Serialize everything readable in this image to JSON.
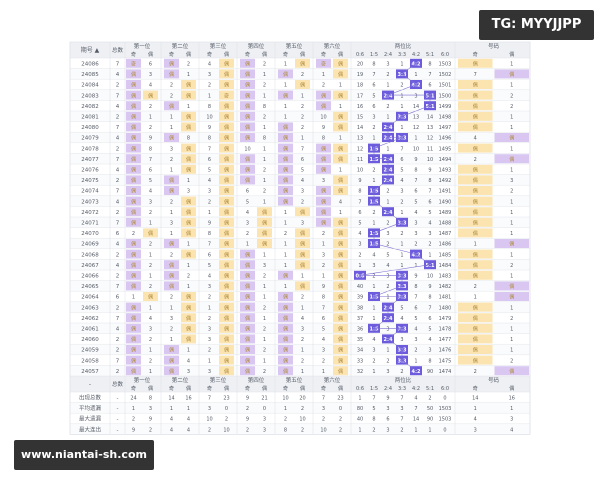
{
  "watermark": {
    "tg": "TG: MYYJJPP",
    "site": "www.niantai-sh.com"
  },
  "colors": {
    "purple": "#d9c7f2",
    "yellow": "#fbe4b0",
    "highlight": "#6c5bdc",
    "header": "#eef0f4",
    "border": "#dde0e6",
    "text": "#555b66"
  },
  "table": {
    "header": {
      "issue_label": "期号 ▲",
      "sum_label": "总数",
      "groups": [
        "第一位",
        "第二位",
        "第三位",
        "第四位",
        "第五位",
        "第六位",
        "两位比",
        "号码"
      ],
      "subs": {
        "pos": [
          "奇",
          "偶"
        ],
        "ratio": [
          "0:6",
          "1:5",
          "2:4",
          "3:3",
          "4:2",
          "5:1",
          "6:0"
        ],
        "tail": [
          "奇",
          "偶"
        ]
      }
    },
    "rows": [
      {
        "issue": "24086",
        "sum": "7",
        "cells": [
          "奇",
          "6",
          "偶",
          "2",
          "4",
          "偶",
          "偶",
          "2",
          "1",
          "偶",
          "奇",
          "偶",
          "20",
          "8",
          "3",
          "1",
          "4:2",
          "8",
          "1503",
          "偶",
          "1"
        ]
      },
      {
        "issue": "24085",
        "sum": "4",
        "cells": [
          "偶",
          "3",
          "偶",
          "1",
          "3",
          "偶",
          "偶",
          "1",
          "偶",
          "2",
          "1",
          "偶",
          "19",
          "7",
          "2",
          "3:3",
          "1",
          "7",
          "1502",
          "7",
          "偶"
        ]
      },
      {
        "issue": "24084",
        "sum": "2",
        "cells": [
          "偶",
          "4",
          "2",
          "偶",
          "2",
          "偶",
          "偶",
          "2",
          "1",
          "偶",
          "2",
          "1",
          "18",
          "6",
          "1",
          "2",
          "4:2",
          "6",
          "1501",
          "偶",
          "1"
        ]
      },
      {
        "issue": "24083",
        "sum": "7",
        "cells": [
          "偶",
          "偶",
          "2",
          "偶",
          "1",
          "奇",
          "偶",
          "1",
          "偶",
          "1",
          "偶",
          "偶",
          "17",
          "5",
          "2:4",
          "1",
          "3",
          "5:1",
          "1500",
          "偶",
          "2"
        ]
      },
      {
        "issue": "24082",
        "sum": "4",
        "cells": [
          "偶",
          "2",
          "偶",
          "1",
          "8",
          "偶",
          "偶",
          "8",
          "1",
          "2",
          "偶",
          "1",
          "16",
          "6",
          "2",
          "1",
          "14",
          "5:1",
          "1499",
          "偶",
          "2"
        ]
      },
      {
        "issue": "24081",
        "sum": "2",
        "cells": [
          "偶",
          "1",
          "1",
          "偶",
          "10",
          "偶",
          "偶",
          "2",
          "1",
          "2",
          "10",
          "偶",
          "15",
          "3",
          "1",
          "3:3",
          "13",
          "14",
          "1498",
          "偶",
          "1"
        ]
      },
      {
        "issue": "24080",
        "sum": "7",
        "cells": [
          "偶",
          "2",
          "1",
          "偶",
          "9",
          "偶",
          "偶",
          "1",
          "偶",
          "2",
          "9",
          "偶",
          "14",
          "2",
          "2:4",
          "1",
          "12",
          "13",
          "1497",
          "偶",
          "1"
        ]
      },
      {
        "issue": "24079",
        "sum": "4",
        "cells": [
          "偶",
          "9",
          "偶",
          "8",
          "8",
          "偶",
          "偶",
          "8",
          "偶",
          "1",
          "8",
          "1",
          "13",
          "1",
          "2:4",
          "3:3",
          "1",
          "12",
          "1496",
          "4",
          "偶"
        ]
      },
      {
        "issue": "24078",
        "sum": "2",
        "cells": [
          "偶",
          "8",
          "3",
          "偶",
          "7",
          "偶",
          "10",
          "1",
          "偶",
          "7",
          "偶",
          "偶",
          "12",
          "1:5",
          "1",
          "7",
          "10",
          "11",
          "1495",
          "偶",
          "1"
        ]
      },
      {
        "issue": "24077",
        "sum": "7",
        "cells": [
          "偶",
          "7",
          "2",
          "偶",
          "6",
          "偶",
          "偶",
          "1",
          "偶",
          "6",
          "偶",
          "偶",
          "11",
          "1:5",
          "2:4",
          "6",
          "9",
          "10",
          "1494",
          "2",
          "偶"
        ]
      },
      {
        "issue": "24076",
        "sum": "4",
        "cells": [
          "偶",
          "6",
          "1",
          "偶",
          "5",
          "偶",
          "偶",
          "2",
          "偶",
          "5",
          "偶",
          "1",
          "10",
          "2",
          "2:4",
          "5",
          "8",
          "9",
          "1493",
          "偶",
          "1"
        ]
      },
      {
        "issue": "24075",
        "sum": "2",
        "cells": [
          "偶",
          "5",
          "偶",
          "1",
          "4",
          "偶",
          "偶",
          "1",
          "偶",
          "4",
          "3",
          "偶",
          "9",
          "1",
          "2:4",
          "4",
          "7",
          "8",
          "1492",
          "偶",
          "3"
        ]
      },
      {
        "issue": "24074",
        "sum": "7",
        "cells": [
          "偶",
          "4",
          "偶",
          "3",
          "3",
          "偶",
          "6",
          "2",
          "偶",
          "3",
          "偶",
          "偶",
          "8",
          "1:5",
          "2",
          "3",
          "6",
          "7",
          "1491",
          "偶",
          "2"
        ]
      },
      {
        "issue": "24073",
        "sum": "4",
        "cells": [
          "偶",
          "3",
          "2",
          "偶",
          "2",
          "偶",
          "5",
          "1",
          "偶",
          "2",
          "偶",
          "4",
          "7",
          "1:5",
          "1",
          "2",
          "5",
          "6",
          "1490",
          "偶",
          "1"
        ]
      },
      {
        "issue": "24072",
        "sum": "2",
        "cells": [
          "偶",
          "2",
          "1",
          "偶",
          "1",
          "偶",
          "4",
          "偶",
          "1",
          "偶",
          "偶",
          "1",
          "6",
          "2",
          "2:4",
          "1",
          "4",
          "5",
          "1489",
          "偶",
          "1"
        ]
      },
      {
        "issue": "24071",
        "sum": "7",
        "cells": [
          "偶",
          "1",
          "3",
          "偶",
          "9",
          "偶",
          "3",
          "偶",
          "1",
          "3",
          "偶",
          "偶",
          "5",
          "1",
          "2",
          "3:3",
          "3",
          "4",
          "1488",
          "偶",
          "1"
        ]
      },
      {
        "issue": "24070",
        "sum": "6",
        "cells": [
          "2",
          "偶",
          "1",
          "偶",
          "8",
          "偶",
          "2",
          "偶",
          "2",
          "偶",
          "2",
          "偶",
          "4",
          "1:5",
          "3",
          "2",
          "3",
          "3",
          "1487",
          "偶",
          "1"
        ]
      },
      {
        "issue": "24069",
        "sum": "4",
        "cells": [
          "偶",
          "2",
          "偶",
          "1",
          "7",
          "偶",
          "1",
          "偶",
          "1",
          "偶",
          "1",
          "偶",
          "3",
          "1:5",
          "2",
          "1",
          "2",
          "2",
          "1486",
          "1",
          "偶"
        ]
      },
      {
        "issue": "24068",
        "sum": "2",
        "cells": [
          "偶",
          "1",
          "2",
          "偶",
          "6",
          "偶",
          "偶",
          "1",
          "1",
          "偶",
          "3",
          "偶",
          "2",
          "4",
          "5",
          "1",
          "4:2",
          "1",
          "1485",
          "偶",
          "1"
        ]
      },
      {
        "issue": "24067",
        "sum": "4",
        "cells": [
          "偶",
          "2",
          "偶",
          "1",
          "5",
          "偶",
          "偶",
          "3",
          "1",
          "偶",
          "2",
          "偶",
          "1",
          "3",
          "4",
          "1",
          "1",
          "5:1",
          "1484",
          "偶",
          "2"
        ]
      },
      {
        "issue": "24066",
        "sum": "2",
        "cells": [
          "偶",
          "1",
          "偶",
          "2",
          "4",
          "偶",
          "偶",
          "2",
          "偶",
          "1",
          "1",
          "偶",
          "0:6",
          "2",
          "3",
          "3:3",
          "9",
          "10",
          "1483",
          "偶",
          "1"
        ]
      },
      {
        "issue": "24065",
        "sum": "7",
        "cells": [
          "偶",
          "2",
          "偶",
          "1",
          "3",
          "偶",
          "偶",
          "1",
          "1",
          "偶",
          "9",
          "偶",
          "40",
          "1",
          "2",
          "3:3",
          "8",
          "9",
          "1482",
          "2",
          "偶"
        ]
      },
      {
        "issue": "24064",
        "sum": "6",
        "cells": [
          "1",
          "偶",
          "2",
          "偶",
          "2",
          "偶",
          "偶",
          "1",
          "偶",
          "2",
          "8",
          "偶",
          "39",
          "1:5",
          "1",
          "3:3",
          "7",
          "8",
          "1481",
          "1",
          "偶"
        ]
      },
      {
        "issue": "24063",
        "sum": "2",
        "cells": [
          "偶",
          "1",
          "1",
          "偶",
          "1",
          "偶",
          "偶",
          "2",
          "偶",
          "1",
          "7",
          "偶",
          "38",
          "1",
          "2:4",
          "5",
          "6",
          "7",
          "1480",
          "偶",
          "1"
        ]
      },
      {
        "issue": "24062",
        "sum": "7",
        "cells": [
          "偶",
          "4",
          "3",
          "偶",
          "2",
          "偶",
          "偶",
          "1",
          "偶",
          "4",
          "6",
          "偶",
          "37",
          "1",
          "2:4",
          "4",
          "5",
          "6",
          "1479",
          "偶",
          "2"
        ]
      },
      {
        "issue": "24061",
        "sum": "4",
        "cells": [
          "偶",
          "3",
          "2",
          "偶",
          "3",
          "偶",
          "偶",
          "2",
          "偶",
          "3",
          "5",
          "偶",
          "36",
          "1:5",
          "3",
          "3:3",
          "4",
          "5",
          "1478",
          "偶",
          "1"
        ]
      },
      {
        "issue": "24060",
        "sum": "2",
        "cells": [
          "偶",
          "2",
          "1",
          "偶",
          "3",
          "偶",
          "偶",
          "1",
          "偶",
          "2",
          "4",
          "偶",
          "35",
          "4",
          "2:4",
          "3",
          "3",
          "4",
          "1477",
          "偶",
          "1"
        ]
      },
      {
        "issue": "24059",
        "sum": "2",
        "cells": [
          "偶",
          "1",
          "偶",
          "1",
          "2",
          "偶",
          "偶",
          "2",
          "偶",
          "1",
          "3",
          "偶",
          "34",
          "3",
          "1",
          "3:3",
          "2",
          "3",
          "1476",
          "偶",
          "1"
        ]
      },
      {
        "issue": "24058",
        "sum": "7",
        "cells": [
          "偶",
          "2",
          "偶",
          "4",
          "1",
          "偶",
          "偶",
          "1",
          "偶",
          "2",
          "2",
          "偶",
          "33",
          "2",
          "2",
          "3:3",
          "1",
          "8",
          "1475",
          "偶",
          "2"
        ]
      },
      {
        "issue": "24057",
        "sum": "2",
        "cells": [
          "偶",
          "1",
          "偶",
          "3",
          "3",
          "偶",
          "偶",
          "2",
          "偶",
          "1",
          "1",
          "偶",
          "32",
          "1",
          "3",
          "2",
          "4:2",
          "90",
          "1474",
          "2",
          "偶"
        ]
      }
    ],
    "stats": [
      {
        "label": "出现总数",
        "sum": "-",
        "cells": [
          "24",
          "8",
          "14",
          "16",
          "7",
          "23",
          "9",
          "21",
          "10",
          "20",
          "7",
          "23",
          "1",
          "7",
          "9",
          "7",
          "4",
          "2",
          "0",
          "14",
          "16"
        ]
      },
      {
        "label": "平均遗漏",
        "sum": "-",
        "cells": [
          "1",
          "3",
          "1",
          "1",
          "3",
          "0",
          "2",
          "0",
          "1",
          "2",
          "3",
          "0",
          "80",
          "5",
          "3",
          "3",
          "7",
          "50",
          "1503",
          "1",
          "1"
        ]
      },
      {
        "label": "最大遗漏",
        "sum": "-",
        "cells": [
          "2",
          "9",
          "4",
          "4",
          "10",
          "2",
          "9",
          "3",
          "2",
          "10",
          "2",
          "2",
          "40",
          "8",
          "6",
          "7",
          "14",
          "90",
          "1503",
          "4",
          "3"
        ]
      },
      {
        "label": "最大连出",
        "sum": "-",
        "cells": [
          "9",
          "2",
          "4",
          "4",
          "2",
          "10",
          "2",
          "3",
          "8",
          "2",
          "10",
          "2",
          "1",
          "2",
          "3",
          "2",
          "1",
          "1",
          "0",
          "3",
          "4"
        ]
      }
    ]
  }
}
